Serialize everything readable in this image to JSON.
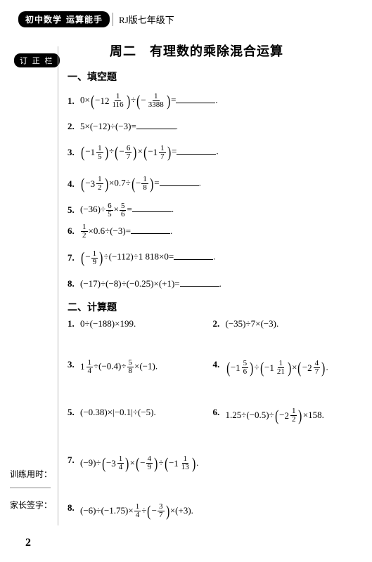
{
  "header": {
    "subject": "初中数学",
    "book": "运算能手",
    "edition": "RJ版七年级下"
  },
  "tab": "订 正 栏",
  "title": "周二　有理数的乘除混合运算",
  "section1": {
    "head": "一、填空题",
    "items": [
      {
        "n": "1.",
        "expr_parts": [
          "0×",
          "P-12 1/116",
          "÷",
          "P-1/3388",
          "="
        ]
      },
      {
        "n": "2.",
        "expr_parts": [
          "5×(−12)÷(−3)="
        ]
      },
      {
        "n": "3.",
        "expr_parts": [
          "P-1 1/5",
          "÷",
          "P-6/7",
          "×",
          "P-1 1/7",
          "="
        ]
      },
      {
        "n": "4.",
        "expr_parts": [
          "P-3 1/2",
          "×0.7÷",
          "P-1/8",
          "="
        ]
      },
      {
        "n": "5.",
        "expr_parts": [
          "(−36)÷",
          "F6/5",
          "×",
          "F5/6",
          "="
        ]
      },
      {
        "n": "6.",
        "expr_parts": [
          "F1/2",
          "×0.6÷(−3)="
        ]
      },
      {
        "n": "7.",
        "expr_parts": [
          "P-1/9",
          "÷(−112)÷1 818×0="
        ]
      },
      {
        "n": "8.",
        "expr_parts": [
          "(−17)÷(−8)÷(−0.25)×(+1)="
        ]
      }
    ]
  },
  "section2": {
    "head": "二、计算题",
    "rows": [
      [
        {
          "n": "1.",
          "expr_parts": [
            "0÷(−188)×199."
          ]
        },
        {
          "n": "2.",
          "expr_parts": [
            "(−35)÷7×(−3)."
          ]
        }
      ],
      [
        {
          "n": "3.",
          "expr_parts": [
            "M1 1/4",
            "÷(−0.4)÷",
            "F5/8",
            "×(−1)."
          ]
        },
        {
          "n": "4.",
          "expr_parts": [
            "P-1 5/6",
            "÷",
            "P-1 1/21",
            "×",
            "P-2 4/7",
            "."
          ]
        }
      ],
      [
        {
          "n": "5.",
          "expr_parts": [
            "(−0.38)×|−0.1|÷(−5)."
          ]
        },
        {
          "n": "6.",
          "expr_parts": [
            "1.25÷(−0.5)÷",
            "P-2 1/2",
            "×158."
          ]
        }
      ],
      [
        {
          "n": "7.",
          "expr_parts": [
            "(−9)÷",
            "P-3 1/4",
            "×",
            "P-4/9",
            "÷",
            "P-1 1/13",
            "."
          ]
        }
      ],
      [
        {
          "n": "8.",
          "expr_parts": [
            "(−6)÷(−1.75)×",
            "F1/4",
            "÷",
            "P-3/7",
            "×(+3)."
          ]
        }
      ]
    ]
  },
  "footer": {
    "train": "训练用时：",
    "sig": "家长签字："
  },
  "pagenum": "2"
}
